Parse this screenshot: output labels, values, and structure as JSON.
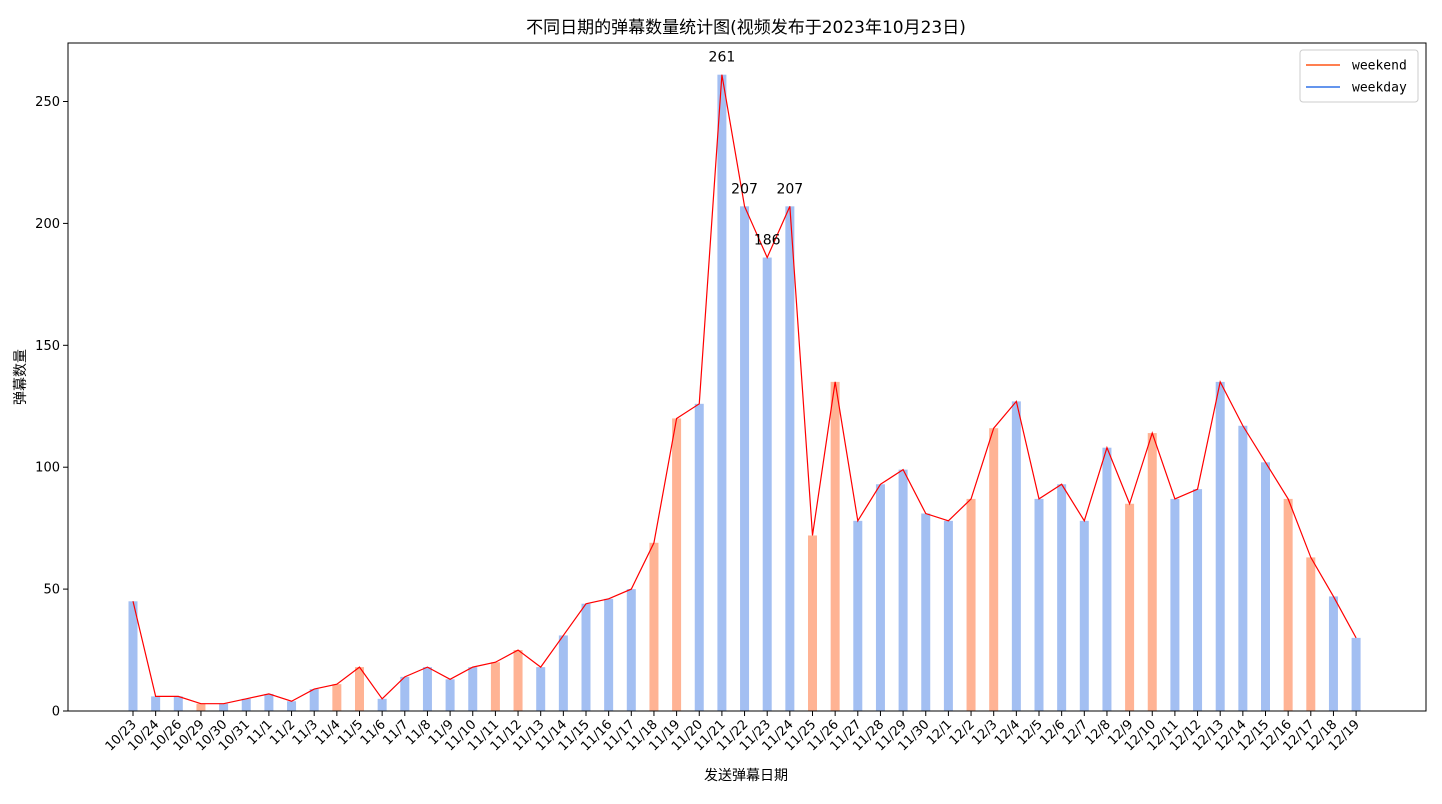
{
  "chart_data": {
    "type": "bar",
    "title": "不同日期的弹幕数量统计图(视频发布于2023年10月23日)",
    "xlabel": "发送弹幕日期",
    "ylabel": "弹幕数量",
    "ylim": [
      0,
      274
    ],
    "yticks": [
      0,
      50,
      100,
      150,
      200,
      250
    ],
    "categories": [
      "10/23",
      "10/24",
      "10/26",
      "10/29",
      "10/30",
      "10/31",
      "11/1",
      "11/2",
      "11/3",
      "11/4",
      "11/5",
      "11/6",
      "11/7",
      "11/8",
      "11/9",
      "11/10",
      "11/11",
      "11/12",
      "11/13",
      "11/14",
      "11/15",
      "11/16",
      "11/17",
      "11/18",
      "11/19",
      "11/20",
      "11/21",
      "11/22",
      "11/23",
      "11/24",
      "11/25",
      "11/26",
      "11/27",
      "11/28",
      "11/29",
      "11/30",
      "12/1",
      "12/2",
      "12/3",
      "12/4",
      "12/5",
      "12/6",
      "12/7",
      "12/8",
      "12/9",
      "12/10",
      "12/11",
      "12/12",
      "12/13",
      "12/14",
      "12/15",
      "12/16",
      "12/17",
      "12/18",
      "12/19"
    ],
    "values": [
      45,
      6,
      6,
      3,
      3,
      5,
      7,
      4,
      9,
      11,
      18,
      5,
      14,
      18,
      13,
      18,
      20,
      25,
      18,
      31,
      44,
      46,
      50,
      69,
      120,
      126,
      261,
      207,
      186,
      207,
      72,
      135,
      78,
      93,
      99,
      81,
      78,
      87,
      116,
      127,
      87,
      93,
      78,
      108,
      85,
      114,
      87,
      91,
      135,
      117,
      102,
      87,
      63,
      47,
      30
    ],
    "weekend": [
      false,
      false,
      false,
      true,
      false,
      false,
      false,
      false,
      false,
      true,
      true,
      false,
      false,
      false,
      false,
      false,
      true,
      true,
      false,
      false,
      false,
      false,
      false,
      true,
      true,
      false,
      false,
      false,
      false,
      false,
      true,
      true,
      false,
      false,
      false,
      false,
      false,
      true,
      true,
      false,
      false,
      false,
      false,
      false,
      true,
      true,
      false,
      false,
      false,
      false,
      false,
      true,
      true,
      false,
      false
    ],
    "annotations": [
      {
        "index": 26,
        "text": "261"
      },
      {
        "index": 27,
        "text": "207"
      },
      {
        "index": 28,
        "text": "186"
      },
      {
        "index": 29,
        "text": "207"
      }
    ],
    "legend": {
      "position": "top-right",
      "entries": [
        {
          "label": "weekend",
          "color": "#ff7f50"
        },
        {
          "label": "weekday",
          "color": "#6495ed"
        }
      ]
    },
    "colors": {
      "weekend_bar": "#ffb394",
      "weekday_bar": "#a3bff2",
      "line": "#ff0000"
    },
    "grid": false
  }
}
